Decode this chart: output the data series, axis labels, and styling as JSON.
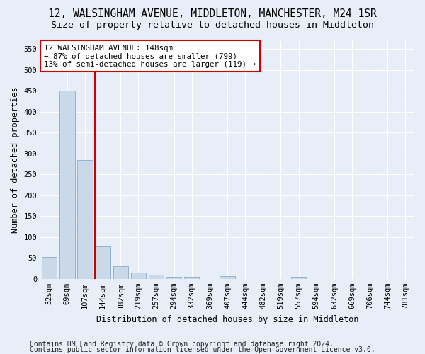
{
  "title": "12, WALSINGHAM AVENUE, MIDDLETON, MANCHESTER, M24 1SR",
  "subtitle": "Size of property relative to detached houses in Middleton",
  "xlabel": "Distribution of detached houses by size in Middleton",
  "ylabel": "Number of detached properties",
  "bar_labels": [
    "32sqm",
    "69sqm",
    "107sqm",
    "144sqm",
    "182sqm",
    "219sqm",
    "257sqm",
    "294sqm",
    "332sqm",
    "369sqm",
    "407sqm",
    "444sqm",
    "482sqm",
    "519sqm",
    "557sqm",
    "594sqm",
    "632sqm",
    "669sqm",
    "706sqm",
    "744sqm",
    "781sqm"
  ],
  "bar_values": [
    53,
    451,
    284,
    78,
    30,
    15,
    10,
    5,
    5,
    0,
    6,
    0,
    0,
    0,
    5,
    0,
    0,
    0,
    0,
    0,
    0
  ],
  "bar_color": "#c9d9ea",
  "bar_edge_color": "#8aaac8",
  "line_color": "#cc0000",
  "line_x_index": 2.575,
  "annotation_text": "12 WALSINGHAM AVENUE: 148sqm\n← 87% of detached houses are smaller (799)\n13% of semi-detached houses are larger (119) →",
  "annotation_box_color": "#ffffff",
  "annotation_box_edge": "#cc0000",
  "ylim": [
    0,
    570
  ],
  "yticks": [
    0,
    50,
    100,
    150,
    200,
    250,
    300,
    350,
    400,
    450,
    500,
    550
  ],
  "footer_line1": "Contains HM Land Registry data © Crown copyright and database right 2024.",
  "footer_line2": "Contains public sector information licensed under the Open Government Licence v3.0.",
  "bg_color": "#e8eef8",
  "plot_bg_color": "#e8eef8",
  "grid_color": "#ffffff",
  "title_fontsize": 10.5,
  "subtitle_fontsize": 9.5,
  "axis_label_fontsize": 8.5,
  "tick_fontsize": 7.5,
  "annotation_fontsize": 7.8,
  "footer_fontsize": 7.0
}
